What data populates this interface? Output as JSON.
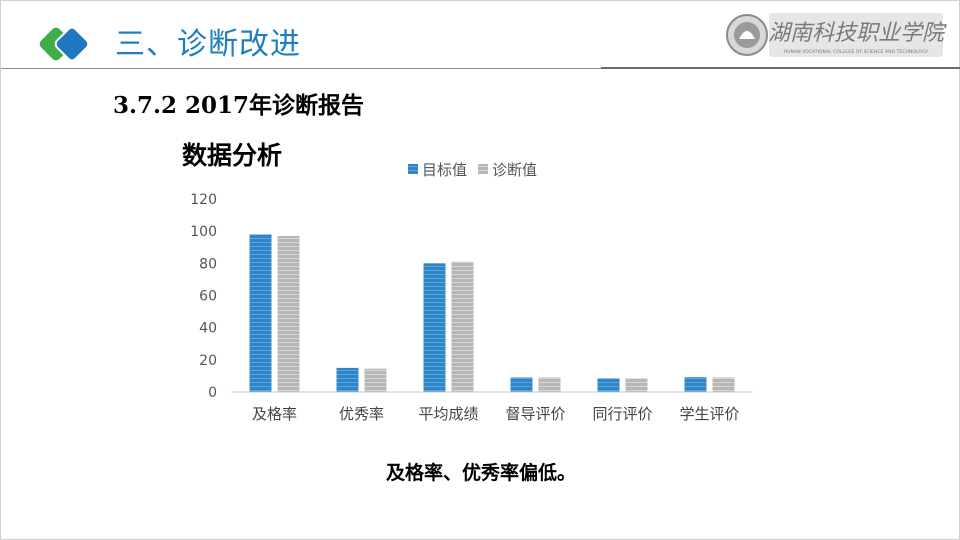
{
  "header": {
    "section_title": "三、诊断改进",
    "school_name_cn": "湖南科技职业学院",
    "school_name_en": "HUNAN VOCATIONAL COLLEGE OF SCIENCE AND TECHNOLOGY"
  },
  "subtitle": "3.7.2 2017年诊断报告",
  "analysis_title": "数据分析",
  "conclusion": "及格率、优秀率偏低。",
  "colors": {
    "accent": "#1d7fc1",
    "series_target": "#2e86c9",
    "series_diagnosis": "#b7b7b7",
    "logo_green": "#3fae49",
    "logo_blue": "#1f78c1"
  },
  "chart_data": {
    "type": "bar",
    "categories": [
      "及格率",
      "优秀率",
      "平均成绩",
      "督导评价",
      "同行评价",
      "学生评价"
    ],
    "series": [
      {
        "name": "目标值",
        "values": [
          98,
          15,
          80,
          9,
          8.5,
          9.2
        ]
      },
      {
        "name": "诊断值",
        "values": [
          97,
          14.5,
          81,
          9,
          8.5,
          9
        ]
      }
    ],
    "ylim": [
      0,
      120
    ],
    "yticks": [
      "0",
      "20",
      "40",
      "60",
      "80",
      "100",
      "120"
    ],
    "grid": false,
    "legend": "top"
  }
}
